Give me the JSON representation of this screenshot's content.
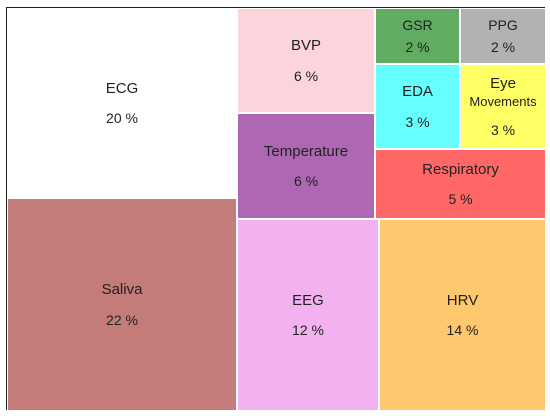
{
  "chart_data": {
    "type": "treemap",
    "title": "",
    "unit": "%",
    "items": [
      {
        "name": "ECG",
        "label": "ECG",
        "value": 20,
        "value_label": "20 %",
        "color": "#ffffff"
      },
      {
        "name": "Saliva",
        "label": "Saliva",
        "value": 22,
        "value_label": "22 %",
        "color": "#c47c7a"
      },
      {
        "name": "BVP",
        "label": "BVP",
        "value": 6,
        "value_label": "6 %",
        "color": "#fcd4dc"
      },
      {
        "name": "Temperature",
        "label": "Temperature",
        "value": 6,
        "value_label": "6 %",
        "color": "#ae67b2"
      },
      {
        "name": "EEG",
        "label": "EEG",
        "value": 12,
        "value_label": "12 %",
        "color": "#f2b2f0"
      },
      {
        "name": "GSR",
        "label": "GSR",
        "value": 2,
        "value_label": "2 %",
        "color": "#62ac62"
      },
      {
        "name": "PPG",
        "label": "PPG",
        "value": 2,
        "value_label": "2 %",
        "color": "#b2b2b2"
      },
      {
        "name": "EDA",
        "label": "EDA",
        "value": 3,
        "value_label": "3 %",
        "color": "#66ffff"
      },
      {
        "name": "Eye Movements",
        "label": "Eye",
        "label2": "Movements",
        "value": 3,
        "value_label": "3 %",
        "color": "#ffff66"
      },
      {
        "name": "Respiratory",
        "label": "Respiratory",
        "value": 5,
        "value_label": "5 %",
        "color": "#ff6666"
      },
      {
        "name": "HRV",
        "label": "HRV",
        "value": 14,
        "value_label": "14 %",
        "color": "#ffc86e"
      }
    ]
  }
}
